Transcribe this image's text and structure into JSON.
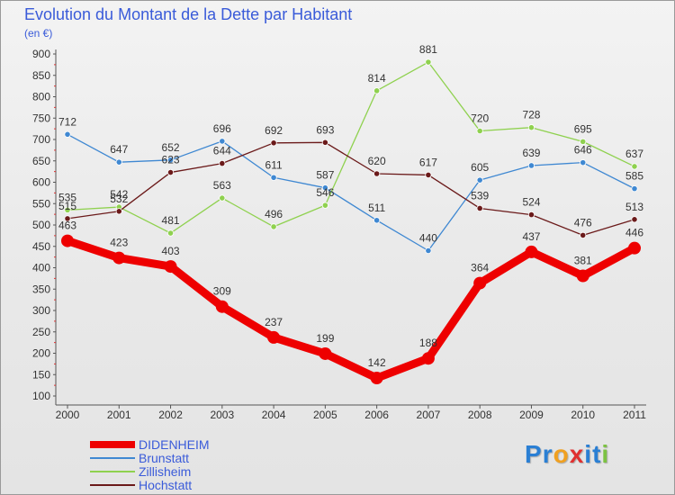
{
  "chart_data": {
    "type": "line",
    "title": "Evolution du Montant de la Dette par Habitant",
    "subtitle": "(en €)",
    "categories": [
      "2000",
      "2001",
      "2002",
      "2003",
      "2004",
      "2005",
      "2006",
      "2007",
      "2008",
      "2009",
      "2010",
      "2011"
    ],
    "yticks": [
      100,
      150,
      200,
      250,
      300,
      350,
      400,
      450,
      500,
      550,
      600,
      650,
      700,
      750,
      800,
      850,
      900
    ],
    "ylim": [
      100,
      900
    ],
    "grid": false,
    "legend_position": "bottom-left",
    "series": [
      {
        "name": "DIDENHEIM",
        "color": "#ee0000",
        "values": [
          463,
          423,
          403,
          309,
          237,
          199,
          142,
          188,
          364,
          437,
          381,
          446
        ]
      },
      {
        "name": "Brunstatt",
        "color": "#3f88d2",
        "values": [
          712,
          647,
          652,
          696,
          611,
          587,
          511,
          440,
          605,
          639,
          646,
          585
        ]
      },
      {
        "name": "Zillisheim",
        "color": "#8fd14f",
        "values": [
          535,
          542,
          481,
          563,
          496,
          546,
          814,
          881,
          720,
          728,
          695,
          637
        ]
      },
      {
        "name": "Hochstatt",
        "color": "#6b1a1a",
        "values": [
          515,
          532,
          623,
          644,
          692,
          693,
          620,
          617,
          539,
          524,
          476,
          513
        ]
      }
    ]
  },
  "logo": {
    "letters": [
      {
        "ch": "P",
        "color": "#2a7fd4"
      },
      {
        "ch": "r",
        "color": "#2a7fd4"
      },
      {
        "ch": "o",
        "color": "#f0a020"
      },
      {
        "ch": "x",
        "color": "#e03030"
      },
      {
        "ch": "i",
        "color": "#2a7fd4"
      },
      {
        "ch": "t",
        "color": "#2a7fd4"
      },
      {
        "ch": "i",
        "color": "#7cc242"
      }
    ]
  }
}
